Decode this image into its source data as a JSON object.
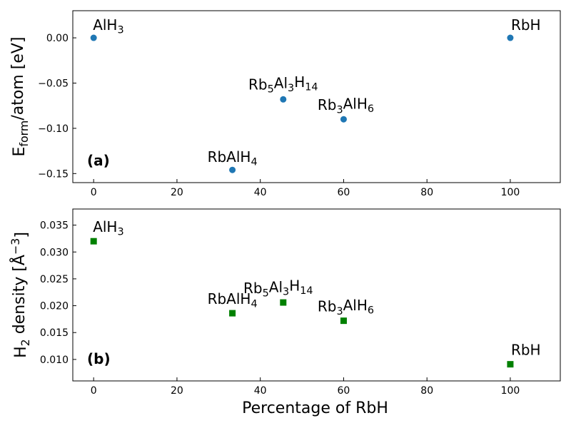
{
  "chart_data": [
    {
      "type": "scatter",
      "panel_label": "(b)",
      "xlabel": "Percentage of RbH",
      "ylabel": "H₂ density [Å⁻³]",
      "xlim": [
        -5,
        112
      ],
      "ylim": [
        0.006,
        0.038
      ],
      "xticks": [
        0,
        20,
        40,
        60,
        80,
        100
      ],
      "yticks": [
        0.01,
        0.015,
        0.02,
        0.025,
        0.03,
        0.035
      ],
      "marker": "square",
      "color": "#008000",
      "points": [
        {
          "x": 0,
          "y": 0.032,
          "label": "AlH₃"
        },
        {
          "x": 33.3,
          "y": 0.0186,
          "label": "RbAlH₄"
        },
        {
          "x": 45.5,
          "y": 0.0206,
          "label": "Rb₅Al₃H₁₄"
        },
        {
          "x": 60,
          "y": 0.0172,
          "label": "Rb₃AlH₆"
        },
        {
          "x": 100,
          "y": 0.0091,
          "label": "RbH"
        }
      ]
    },
    {
      "type": "scatter",
      "panel_label": "(a)",
      "xlabel": "",
      "ylabel": "E_form/atom [eV]",
      "xlim": [
        -5,
        112
      ],
      "ylim": [
        -0.16,
        0.03
      ],
      "xticks": [
        0,
        20,
        40,
        60,
        80,
        100
      ],
      "yticks": [
        -0.15,
        -0.1,
        -0.05,
        0.0
      ],
      "marker": "circle",
      "color": "#1f77b4",
      "points": [
        {
          "x": 0,
          "y": 0.0,
          "label": "AlH₃"
        },
        {
          "x": 33.3,
          "y": -0.146,
          "label": "RbAlH₄"
        },
        {
          "x": 45.5,
          "y": -0.068,
          "label": "Rb₅Al₃H₁₄"
        },
        {
          "x": 60,
          "y": -0.09,
          "label": "Rb₃AlH₆"
        },
        {
          "x": 100,
          "y": 0.0,
          "label": "RbH"
        }
      ]
    }
  ]
}
